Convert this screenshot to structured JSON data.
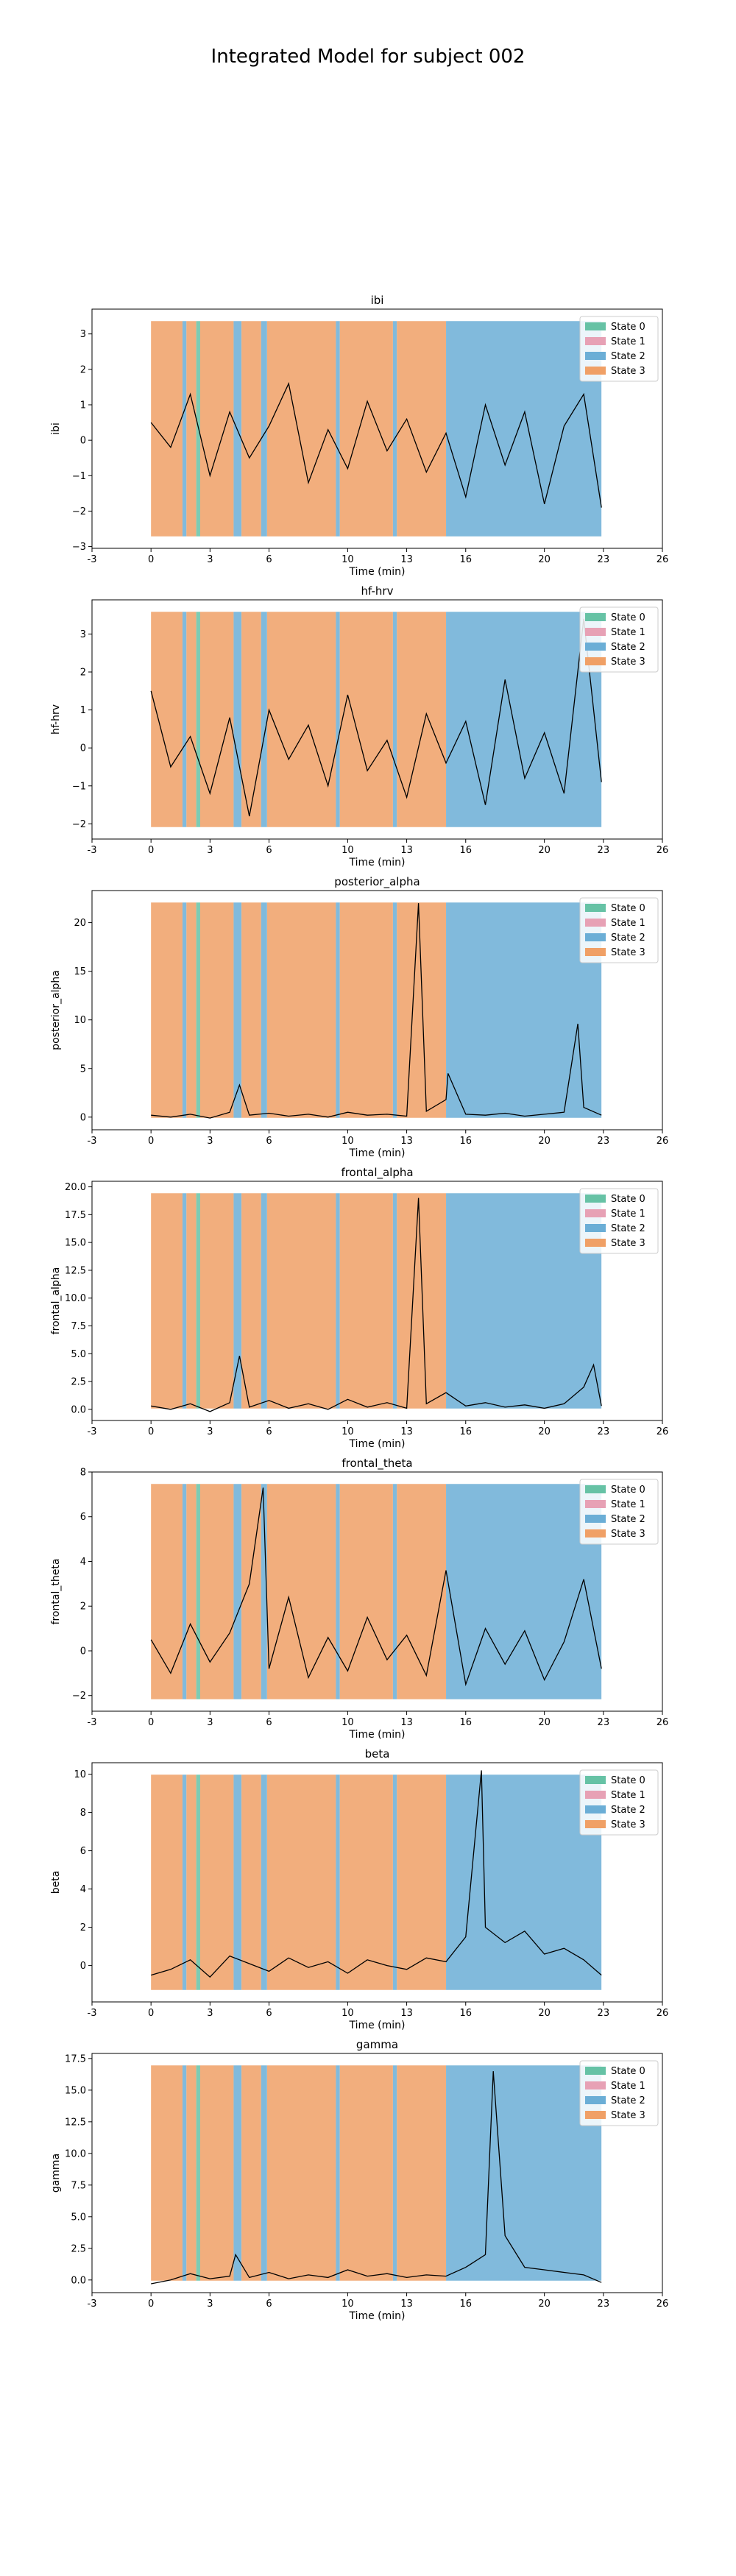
{
  "figure": {
    "title": "Integrated Model for subject 002"
  },
  "colors": {
    "state_0": "#66c2a5",
    "state_1": "#e7a1b5",
    "state_2": "#6baed6",
    "state_3": "#f0a066",
    "line": "#000000"
  },
  "legend_labels": [
    "State 0",
    "State 1",
    "State 2",
    "State 3"
  ],
  "state_segments": [
    {
      "start": 0.0,
      "end": 1.6,
      "state": 3
    },
    {
      "start": 1.6,
      "end": 1.8,
      "state": 2
    },
    {
      "start": 1.8,
      "end": 2.3,
      "state": 3
    },
    {
      "start": 2.3,
      "end": 2.5,
      "state": 0
    },
    {
      "start": 2.5,
      "end": 4.2,
      "state": 3
    },
    {
      "start": 4.2,
      "end": 4.6,
      "state": 2
    },
    {
      "start": 4.6,
      "end": 5.6,
      "state": 3
    },
    {
      "start": 5.6,
      "end": 5.9,
      "state": 2
    },
    {
      "start": 5.9,
      "end": 9.4,
      "state": 3
    },
    {
      "start": 9.4,
      "end": 9.6,
      "state": 2
    },
    {
      "start": 9.6,
      "end": 12.3,
      "state": 3
    },
    {
      "start": 12.3,
      "end": 12.5,
      "state": 2
    },
    {
      "start": 12.5,
      "end": 15.0,
      "state": 3
    },
    {
      "start": 15.0,
      "end": 22.9,
      "state": 2
    }
  ],
  "chart_data": [
    {
      "type": "line",
      "title": "ibi",
      "xlabel": "Time (min)",
      "ylabel": "ibi",
      "xlim": [
        -3,
        26
      ],
      "xticks": [
        -3,
        0,
        3,
        6,
        10,
        13,
        16,
        20,
        23,
        26
      ],
      "ylim": [
        -3.05,
        3.7
      ],
      "yticks": [
        -3,
        -2,
        -1,
        0,
        1,
        2,
        3
      ],
      "ytick_labels": [
        "−3",
        "−2",
        "−1",
        "0",
        "1",
        "2",
        "3"
      ],
      "legend_position": "upper right",
      "series": [
        {
          "x": [
            0,
            1,
            2,
            3,
            4,
            5,
            6,
            7,
            8,
            9,
            10,
            11,
            12,
            13,
            14,
            15,
            16,
            17,
            18,
            19,
            20,
            21,
            22,
            22.9
          ],
          "y": [
            0.5,
            -0.2,
            1.3,
            -1.0,
            0.8,
            -0.5,
            0.4,
            1.6,
            -1.2,
            0.3,
            -0.8,
            1.1,
            -0.3,
            0.6,
            -0.9,
            0.2,
            -1.6,
            1.0,
            -0.7,
            0.8,
            -1.8,
            0.4,
            1.3,
            -1.9
          ]
        }
      ]
    },
    {
      "type": "line",
      "title": "hf-hrv",
      "xlabel": "Time (min)",
      "ylabel": "hf-hrv",
      "xlim": [
        -3,
        26
      ],
      "xticks": [
        -3,
        0,
        3,
        6,
        10,
        13,
        16,
        20,
        23,
        26
      ],
      "ylim": [
        -2.4,
        3.9
      ],
      "yticks": [
        -2,
        -1,
        0,
        1,
        2,
        3
      ],
      "ytick_labels": [
        "−2",
        "−1",
        "0",
        "1",
        "2",
        "3"
      ],
      "legend_position": "upper right",
      "series": [
        {
          "x": [
            0,
            1,
            2,
            3,
            4,
            5,
            6,
            7,
            8,
            9,
            10,
            11,
            12,
            13,
            14,
            15,
            16,
            17,
            18,
            19,
            20,
            21,
            22,
            22.9
          ],
          "y": [
            1.5,
            -0.5,
            0.3,
            -1.2,
            0.8,
            -1.8,
            1.0,
            -0.3,
            0.6,
            -1.0,
            1.4,
            -0.6,
            0.2,
            -1.3,
            0.9,
            -0.4,
            0.7,
            -1.5,
            1.8,
            -0.8,
            0.4,
            -1.2,
            3.4,
            -0.9
          ]
        }
      ]
    },
    {
      "type": "line",
      "title": "posterior_alpha",
      "xlabel": "Time (min)",
      "ylabel": "posterior_alpha",
      "xlim": [
        -3,
        26
      ],
      "xticks": [
        -3,
        0,
        3,
        6,
        10,
        13,
        16,
        20,
        23,
        26
      ],
      "ylim": [
        -1.3,
        23.3
      ],
      "yticks": [
        0,
        5,
        10,
        15,
        20
      ],
      "ytick_labels": [
        "0",
        "5",
        "10",
        "15",
        "20"
      ],
      "legend_position": "upper right",
      "series": [
        {
          "x": [
            0,
            1,
            2,
            3,
            4,
            4.5,
            5,
            6,
            7,
            8,
            9,
            10,
            11,
            12,
            13,
            13.6,
            14,
            15,
            15.1,
            16,
            17,
            18,
            19,
            20,
            21,
            21.7,
            22,
            22.9
          ],
          "y": [
            0.2,
            0.0,
            0.3,
            -0.1,
            0.5,
            3.3,
            0.2,
            0.4,
            0.1,
            0.3,
            0.0,
            0.5,
            0.2,
            0.3,
            0.1,
            22.0,
            0.6,
            1.8,
            4.5,
            0.3,
            0.2,
            0.4,
            0.1,
            0.3,
            0.5,
            9.6,
            1.0,
            0.2
          ]
        }
      ]
    },
    {
      "type": "line",
      "title": "frontal_alpha",
      "xlabel": "Time (min)",
      "ylabel": "frontal_alpha",
      "xlim": [
        -3,
        26
      ],
      "xticks": [
        -3,
        0,
        3,
        6,
        10,
        13,
        16,
        20,
        23,
        26
      ],
      "ylim": [
        -1.0,
        20.5
      ],
      "yticks": [
        0.0,
        2.5,
        5.0,
        7.5,
        10.0,
        12.5,
        15.0,
        17.5,
        20.0
      ],
      "ytick_labels": [
        "0.0",
        "2.5",
        "5.0",
        "7.5",
        "10.0",
        "12.5",
        "15.0",
        "17.5",
        "20.0"
      ],
      "legend_position": "upper right",
      "series": [
        {
          "x": [
            0,
            1,
            2,
            3,
            4,
            4.5,
            5,
            6,
            7,
            8,
            9,
            10,
            11,
            12,
            13,
            13.6,
            14,
            15,
            16,
            17,
            18,
            19,
            20,
            21,
            22,
            22.5,
            22.9
          ],
          "y": [
            0.3,
            0.0,
            0.5,
            -0.2,
            0.6,
            4.8,
            0.2,
            0.8,
            0.1,
            0.5,
            0.0,
            0.9,
            0.2,
            0.6,
            0.1,
            19.0,
            0.5,
            1.5,
            0.3,
            0.6,
            0.2,
            0.4,
            0.1,
            0.5,
            2.0,
            4.0,
            0.3
          ]
        }
      ]
    },
    {
      "type": "line",
      "title": "frontal_theta",
      "xlabel": "Time (min)",
      "ylabel": "frontal_theta",
      "xlim": [
        -3,
        26
      ],
      "xticks": [
        -3,
        0,
        3,
        6,
        10,
        13,
        16,
        20,
        23,
        26
      ],
      "ylim": [
        -2.7,
        8.0
      ],
      "yticks": [
        -2,
        0,
        2,
        4,
        6,
        8
      ],
      "ytick_labels": [
        "−2",
        "0",
        "2",
        "4",
        "6",
        "8"
      ],
      "legend_position": "upper right",
      "series": [
        {
          "x": [
            0,
            1,
            2,
            3,
            4,
            5,
            5.7,
            6,
            7,
            8,
            9,
            10,
            11,
            12,
            13,
            14,
            15,
            16,
            17,
            18,
            19,
            20,
            21,
            22,
            22.9
          ],
          "y": [
            0.5,
            -1.0,
            1.2,
            -0.5,
            0.8,
            3.0,
            7.3,
            -0.8,
            2.4,
            -1.2,
            0.6,
            -0.9,
            1.5,
            -0.4,
            0.7,
            -1.1,
            3.6,
            -1.5,
            1.0,
            -0.6,
            0.9,
            -1.3,
            0.4,
            3.2,
            -0.8
          ]
        }
      ]
    },
    {
      "type": "line",
      "title": "beta",
      "xlabel": "Time (min)",
      "ylabel": "beta",
      "xlim": [
        -3,
        26
      ],
      "xticks": [
        -3,
        0,
        3,
        6,
        10,
        13,
        16,
        20,
        23,
        26
      ],
      "ylim": [
        -1.9,
        10.6
      ],
      "yticks": [
        0,
        2,
        4,
        6,
        8,
        10
      ],
      "ytick_labels": [
        "0",
        "2",
        "4",
        "6",
        "8",
        "10"
      ],
      "legend_position": "upper right",
      "series": [
        {
          "x": [
            0,
            1,
            2,
            3,
            4,
            5,
            6,
            7,
            8,
            9,
            10,
            11,
            12,
            13,
            14,
            15,
            16,
            16.8,
            17,
            18,
            19,
            20,
            21,
            22,
            22.9
          ],
          "y": [
            -0.5,
            -0.2,
            0.3,
            -0.6,
            0.5,
            0.1,
            -0.3,
            0.4,
            -0.1,
            0.2,
            -0.4,
            0.3,
            0.0,
            -0.2,
            0.4,
            0.2,
            1.5,
            10.2,
            2.0,
            1.2,
            1.8,
            0.6,
            0.9,
            0.3,
            -0.5
          ]
        }
      ]
    },
    {
      "type": "line",
      "title": "gamma",
      "xlabel": "Time (min)",
      "ylabel": "gamma",
      "xlim": [
        -3,
        26
      ],
      "xticks": [
        -3,
        0,
        3,
        6,
        10,
        13,
        16,
        20,
        23,
        26
      ],
      "ylim": [
        -1.0,
        17.9
      ],
      "yticks": [
        0.0,
        2.5,
        5.0,
        7.5,
        10.0,
        12.5,
        15.0,
        17.5
      ],
      "ytick_labels": [
        "0.0",
        "2.5",
        "5.0",
        "7.5",
        "10.0",
        "12.5",
        "15.0",
        "17.5"
      ],
      "legend_position": "upper right",
      "series": [
        {
          "x": [
            0,
            1,
            2,
            3,
            4,
            4.3,
            5,
            6,
            7,
            8,
            9,
            10,
            11,
            12,
            13,
            14,
            15,
            16,
            17,
            17.4,
            18,
            19,
            20,
            21,
            22,
            22.9
          ],
          "y": [
            -0.3,
            0.0,
            0.5,
            0.1,
            0.3,
            2.0,
            0.2,
            0.6,
            0.1,
            0.4,
            0.2,
            0.8,
            0.3,
            0.5,
            0.2,
            0.4,
            0.3,
            1.0,
            2.0,
            16.5,
            3.5,
            1.0,
            0.8,
            0.6,
            0.4,
            -0.2
          ]
        }
      ]
    }
  ]
}
